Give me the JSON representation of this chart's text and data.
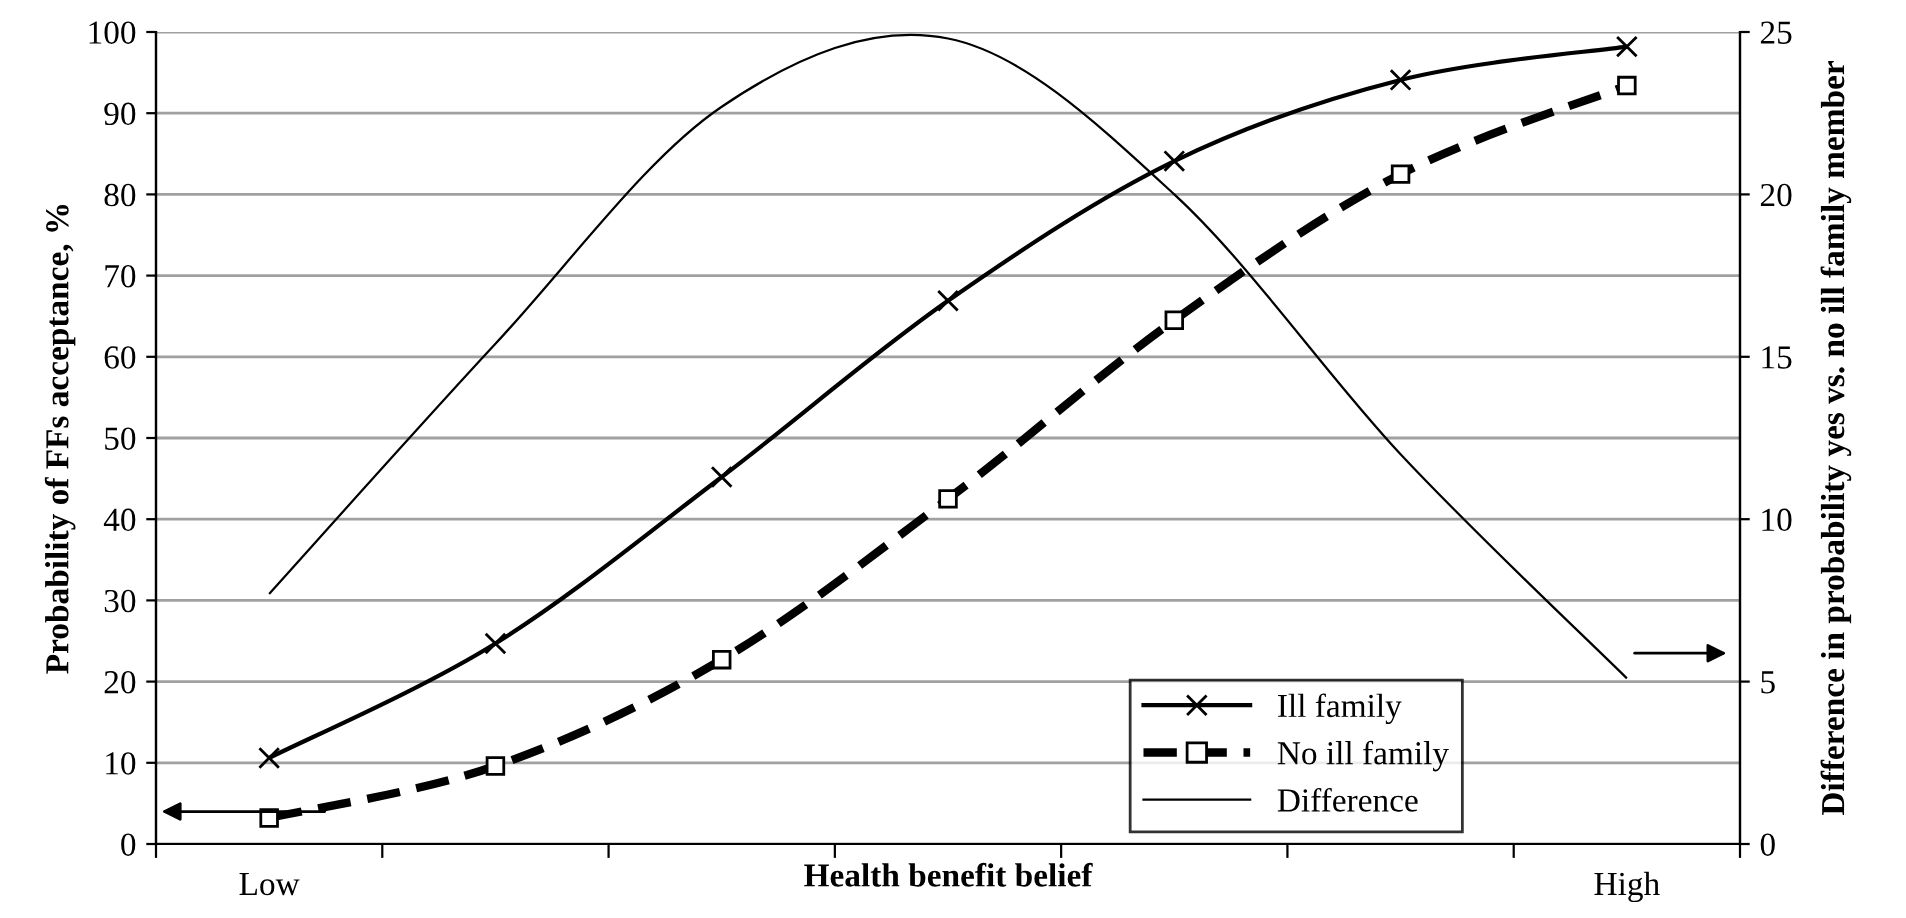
{
  "chart_data": {
    "type": "line",
    "xlabel": "Health benefit belief",
    "ylabel": "Probability of FFs acceptance, %",
    "y2label": "Difference in probability yes vs. no ill family member",
    "categories": [
      "Low",
      null,
      null,
      null,
      null,
      null,
      "High"
    ],
    "series": [
      {
        "name": "Ill family",
        "color": "#000000",
        "marker": "cross",
        "line_style": "solid",
        "values": [
          10.6,
          24.7,
          45.2,
          66.9,
          84.1,
          94.1,
          98.2
        ]
      },
      {
        "name": "No ill family",
        "color": "#000000",
        "marker": "square",
        "line_style": "dashed",
        "values": [
          3.2,
          9.6,
          22.7,
          42.5,
          64.5,
          82.5,
          93.4
        ]
      },
      {
        "name": "Difference",
        "color": "#000000",
        "marker": "none",
        "line_style": "solid",
        "axis": "y2",
        "values": [
          7.7,
          15.4,
          22.7,
          24.8,
          20.0,
          12.0,
          5.1
        ]
      }
    ],
    "ylim": [
      0,
      100
    ],
    "yticks": [
      0,
      10,
      20,
      30,
      40,
      50,
      60,
      70,
      80,
      90,
      100
    ],
    "y2lim": [
      0,
      25
    ],
    "y2ticks": [
      0,
      5,
      10,
      15,
      20,
      25
    ],
    "grid": "y",
    "legend": "bottom right"
  }
}
